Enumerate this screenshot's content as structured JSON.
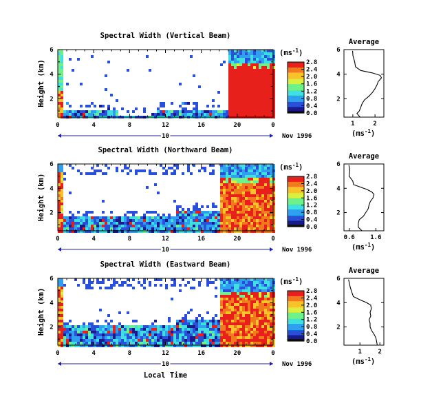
{
  "chart_data": [
    {
      "type": "heatmap",
      "title": "Spectral Width (Vertical Beam)",
      "ylabel": "Height (km)",
      "x_ticks": [
        "0",
        "4",
        "8",
        "12",
        "16",
        "20",
        "0"
      ],
      "y_ticks": [
        "2",
        "4",
        "6"
      ],
      "date_row": {
        "day": "10",
        "month": "Nov 1996"
      },
      "colorbar": {
        "unit": "(ms⁻¹)",
        "ticks": [
          "0.0",
          "0.4",
          "0.8",
          "1.2",
          "1.6",
          "2.0",
          "2.4",
          "2.8"
        ]
      },
      "xlim": [
        0,
        24
      ],
      "ylim": [
        0.5,
        6
      ]
    },
    {
      "type": "line",
      "title": "Average",
      "xlabel": "(ms⁻¹)",
      "x_ticks": [
        "1",
        "2"
      ],
      "y_ticks": [
        "2",
        "4",
        "6"
      ],
      "xlim": [
        0.6,
        2.4
      ],
      "ylim": [
        0.5,
        6
      ],
      "profile": [
        [
          0.5,
          1.3
        ],
        [
          0.8,
          1.2
        ],
        [
          1.0,
          1.25
        ],
        [
          1.3,
          1.35
        ],
        [
          1.6,
          1.45
        ],
        [
          1.9,
          1.55
        ],
        [
          2.2,
          1.7
        ],
        [
          2.5,
          1.85
        ],
        [
          2.8,
          2.0
        ],
        [
          3.1,
          2.05
        ],
        [
          3.4,
          2.15
        ],
        [
          3.7,
          2.3
        ],
        [
          3.9,
          2.2
        ],
        [
          4.1,
          1.9
        ],
        [
          4.3,
          1.4
        ],
        [
          4.6,
          1.15
        ],
        [
          5.0,
          1.05
        ],
        [
          5.5,
          1.0
        ],
        [
          5.9,
          0.95
        ]
      ]
    },
    {
      "type": "heatmap",
      "title": "Spectral Width (Northward Beam)",
      "ylabel": "Height (km)",
      "x_ticks": [
        "0",
        "4",
        "8",
        "12",
        "16",
        "20",
        "0"
      ],
      "y_ticks": [
        "2",
        "4",
        "6"
      ],
      "date_row": {
        "day": "10",
        "month": "Nov 1996"
      },
      "colorbar": {
        "unit": "(ms⁻¹)",
        "ticks": [
          "0.0",
          "0.4",
          "0.8",
          "1.2",
          "1.6",
          "2.0",
          "2.4",
          "2.8"
        ]
      },
      "xlim": [
        0,
        24
      ],
      "ylim": [
        0.5,
        6
      ]
    },
    {
      "type": "line",
      "title": "Average",
      "xlabel": "(ms⁻¹)",
      "x_ticks": [
        "0.6",
        "1.6"
      ],
      "y_ticks": [
        "2",
        "4",
        "6"
      ],
      "xlim": [
        0.4,
        1.9
      ],
      "ylim": [
        0.5,
        6
      ],
      "profile": [
        [
          0.5,
          1.05
        ],
        [
          0.8,
          0.95
        ],
        [
          1.1,
          0.92
        ],
        [
          1.4,
          1.0
        ],
        [
          1.7,
          1.1
        ],
        [
          2.0,
          1.2
        ],
        [
          2.3,
          1.3
        ],
        [
          2.6,
          1.35
        ],
        [
          2.9,
          1.4
        ],
        [
          3.2,
          1.45
        ],
        [
          3.5,
          1.5
        ],
        [
          3.7,
          1.42
        ],
        [
          3.9,
          1.3
        ],
        [
          4.1,
          1.0
        ],
        [
          4.3,
          0.8
        ],
        [
          4.6,
          0.7
        ],
        [
          5.0,
          0.62
        ],
        [
          5.5,
          0.6
        ],
        [
          5.9,
          0.58
        ]
      ]
    },
    {
      "type": "heatmap",
      "title": "Spectral Width (Eastward Beam)",
      "ylabel": "Height (km)",
      "xlabel": "Local Time",
      "x_ticks": [
        "0",
        "4",
        "8",
        "12",
        "16",
        "20",
        "0"
      ],
      "y_ticks": [
        "2",
        "4",
        "6"
      ],
      "date_row": {
        "day": "10",
        "month": "Nov 1996"
      },
      "colorbar": {
        "unit": "(ms⁻¹)",
        "ticks": [
          "0.0",
          "0.4",
          "0.8",
          "1.2",
          "1.6",
          "2.0",
          "2.4",
          "2.8"
        ]
      },
      "xlim": [
        0,
        24
      ],
      "ylim": [
        0.5,
        6
      ]
    },
    {
      "type": "line",
      "title": "Average",
      "xlabel": "(ms⁻¹)",
      "x_ticks": [
        "1",
        "2"
      ],
      "y_ticks": [
        "2",
        "4",
        "6"
      ],
      "xlim": [
        0.2,
        2.2
      ],
      "ylim": [
        0.5,
        6
      ],
      "profile": [
        [
          0.5,
          1.9
        ],
        [
          0.8,
          1.85
        ],
        [
          1.1,
          1.8
        ],
        [
          1.4,
          1.7
        ],
        [
          1.7,
          1.6
        ],
        [
          2.0,
          1.55
        ],
        [
          2.3,
          1.5
        ],
        [
          2.6,
          1.45
        ],
        [
          2.9,
          1.5
        ],
        [
          3.2,
          1.55
        ],
        [
          3.5,
          1.6
        ],
        [
          3.8,
          1.5
        ],
        [
          4.0,
          1.3
        ],
        [
          4.2,
          1.0
        ],
        [
          4.5,
          0.7
        ],
        [
          4.9,
          0.55
        ],
        [
          5.3,
          0.5
        ],
        [
          5.9,
          0.45
        ]
      ]
    }
  ],
  "colors": {
    "cmap": [
      "#1a1a8a",
      "#2a4fd8",
      "#2fa0f0",
      "#3fe0e0",
      "#6ef08a",
      "#d8f040",
      "#f6c42a",
      "#f07a1c",
      "#e8201c"
    ]
  }
}
